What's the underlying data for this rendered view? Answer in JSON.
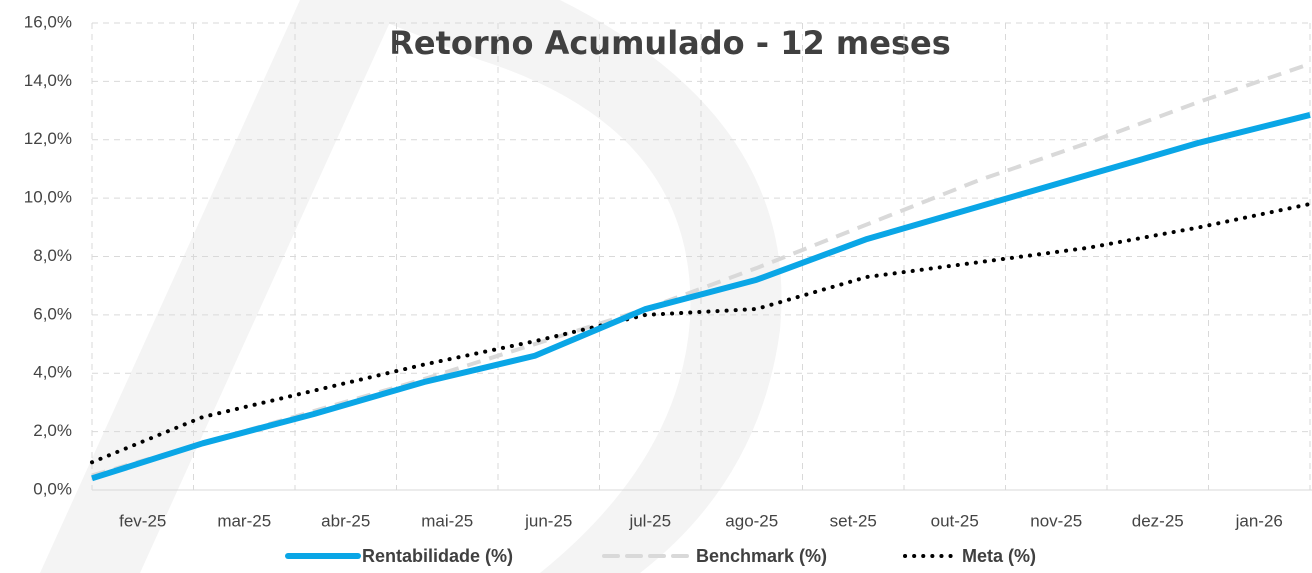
{
  "chart_data": {
    "type": "line",
    "title": "Retorno Acumulado - 12 meses",
    "categories": [
      "fev-25",
      "mar-25",
      "abr-25",
      "mai-25",
      "jun-25",
      "jul-25",
      "ago-25",
      "set-25",
      "out-25",
      "nov-25",
      "dez-25",
      "jan-26"
    ],
    "series": [
      {
        "name": "Rentabilidade (%)",
        "color": "#0aa6e6",
        "style": "solid",
        "values": [
          0.4,
          1.6,
          2.6,
          3.7,
          4.6,
          6.2,
          7.2,
          8.6,
          9.7,
          10.8,
          11.9,
          12.85
        ]
      },
      {
        "name": "Benchmark (%)",
        "color": "#d9d9d9",
        "style": "dashed",
        "values": [
          0.5,
          1.6,
          2.7,
          3.8,
          5.0,
          6.2,
          7.6,
          9.1,
          10.6,
          11.9,
          13.3,
          14.6
        ]
      },
      {
        "name": "Meta (%)",
        "color": "#000000",
        "style": "dotted",
        "values": [
          0.95,
          2.5,
          3.4,
          4.3,
          5.1,
          6.0,
          6.2,
          7.3,
          7.8,
          8.3,
          9.0,
          9.8
        ]
      }
    ],
    "ylim": [
      0,
      16
    ],
    "yticks": [
      {
        "value": 0,
        "label": "0,0%"
      },
      {
        "value": 2,
        "label": "2,0%"
      },
      {
        "value": 4,
        "label": "4,0%"
      },
      {
        "value": 6,
        "label": "6,0%"
      },
      {
        "value": 8,
        "label": "8,0%"
      },
      {
        "value": 10,
        "label": "10,0%"
      },
      {
        "value": 12,
        "label": "12,0%"
      },
      {
        "value": 14,
        "label": "14,0%"
      },
      {
        "value": 16,
        "label": "16,0%"
      }
    ],
    "grid": true,
    "legend": "bottom"
  }
}
